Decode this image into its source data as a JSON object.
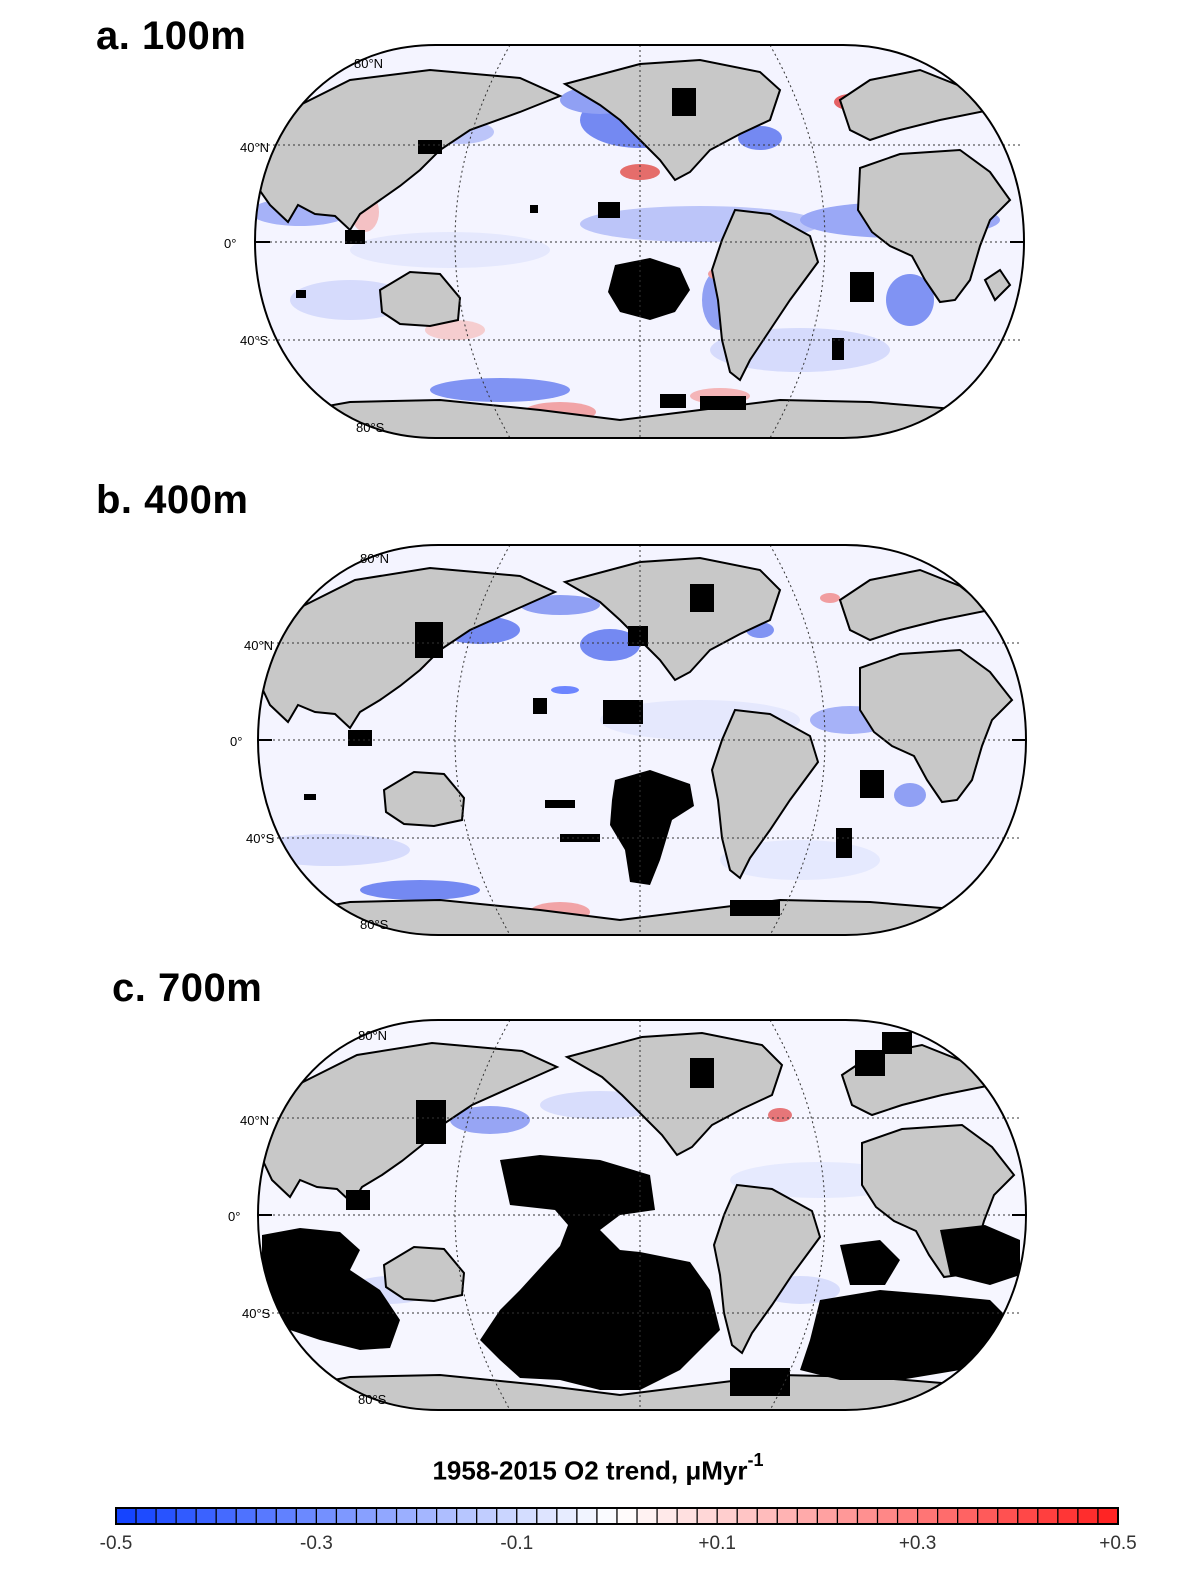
{
  "panels": [
    {
      "label": "a. 100m",
      "lat_labels": [
        "80°N",
        "40°N",
        "0°",
        "40°S",
        "80°S"
      ]
    },
    {
      "label": "b. 400m",
      "lat_labels": [
        "80°N",
        "40°N",
        "0°",
        "40°S",
        "80°S"
      ]
    },
    {
      "label": "c. 700m",
      "lat_labels": [
        "80°N",
        "40°N",
        "0°",
        "40°S",
        "80°S"
      ]
    }
  ],
  "colorbar": {
    "title": "1958-2015 O2 trend, μMyr",
    "unit_exponent": "-1",
    "range": [
      -0.5,
      0.5
    ],
    "ticks": [
      "-0.5",
      "-0.3",
      "-0.1",
      "+0.1",
      "+0.3",
      "+0.5"
    ],
    "colors": {
      "low": "#1040ff",
      "mid": "#ffffff",
      "high": "#ff2020"
    }
  },
  "colors": {
    "land": "#c8c8c8",
    "no_data": "#000000",
    "ocean_background": "#f3f3ff"
  }
}
